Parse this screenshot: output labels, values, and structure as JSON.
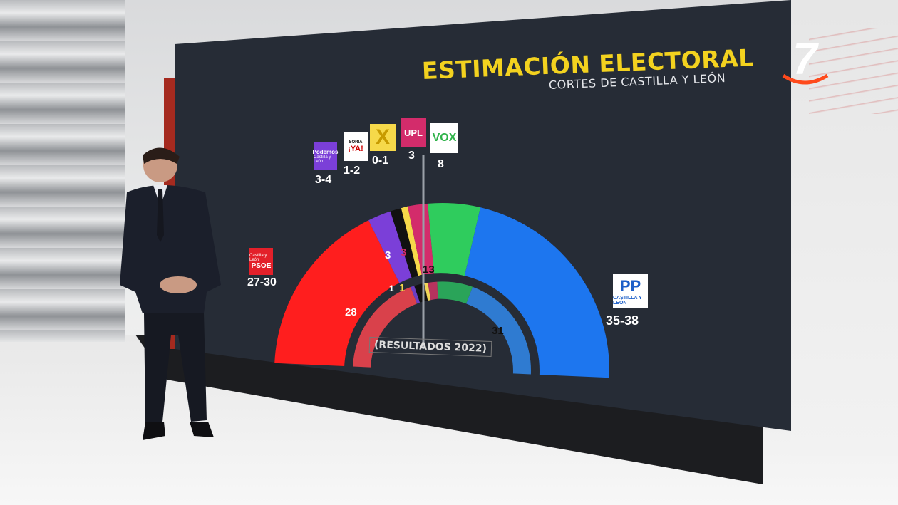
{
  "heading": {
    "title": "ESTIMACIÓN ELECTORAL",
    "subtitle": "CORTES DE CASTILLA Y LEÓN"
  },
  "channel": {
    "number": "7"
  },
  "parties": [
    {
      "name": "PSOE",
      "color": "#ff1e1e",
      "estimate": "27-30",
      "logo_text": "PSOE"
    },
    {
      "name": "Podemos",
      "color": "#7b3fd8",
      "estimate": "3-4",
      "logo_text": "Podemos"
    },
    {
      "name": "Soria ¡Ya!",
      "color": "#111111",
      "estimate": "1-2",
      "logo_text": "¡YA!"
    },
    {
      "name": "XAV",
      "color": "#f6d94a",
      "estimate": "0-1",
      "logo_text": "X"
    },
    {
      "name": "UPL",
      "color": "#d32c6b",
      "estimate": "3",
      "logo_text": "UPL"
    },
    {
      "name": "VOX",
      "color": "#2fcc5d",
      "estimate": "8",
      "logo_text": "VOX"
    },
    {
      "name": "PP",
      "color": "#1d76ef",
      "estimate": "35-38",
      "logo_text": "PP"
    }
  ],
  "results_2022": {
    "label": "(RESULTADOS 2022)",
    "seats": [
      {
        "party": "PSOE",
        "value": "28"
      },
      {
        "party": "Podemos",
        "value": "1"
      },
      {
        "party": "Soria ¡Ya!",
        "value": "3"
      },
      {
        "party": "XAV",
        "value": "1"
      },
      {
        "party": "UPL",
        "value": "3"
      },
      {
        "party": "VOX",
        "value": "13"
      },
      {
        "party": "PP",
        "value": "31"
      }
    ]
  },
  "logo_subtext": {
    "psoe_region": "Castilla y León",
    "podemos_region": "Castilla y León",
    "pp_region": "CASTILLA Y LEÓN",
    "soria": "SORIA"
  }
}
